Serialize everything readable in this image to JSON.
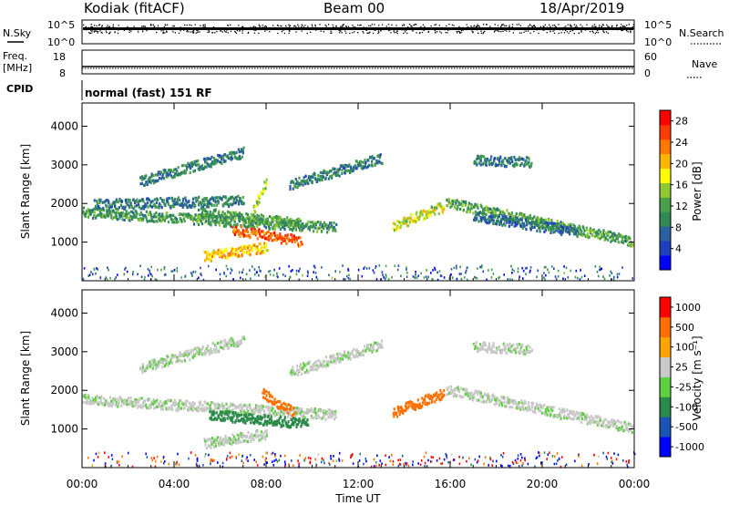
{
  "header": {
    "station": "Kodiak (fitACF)",
    "beam": "Beam 00",
    "date": "18/Apr/2019"
  },
  "strips": {
    "nsky_label": "N.Sky",
    "nsearch_label": "N.Search",
    "nsky_ticks": [
      "10^5",
      "10^0"
    ],
    "freq_label": "Freq.",
    "freq_unit": "[MHz]",
    "freq_ticks": [
      "18",
      "8"
    ],
    "nave_label": "Nave",
    "nave_ticks": [
      "60",
      "0"
    ],
    "cpid_label": "CPID",
    "cpid_text": "normal (fast) 151 RF"
  },
  "colors": {
    "power_scale": [
      "#0000ff",
      "#1f3fbf",
      "#2a5fa0",
      "#2f8a55",
      "#4aa04a",
      "#8fc832",
      "#ffff00",
      "#ffb400",
      "#ff7800",
      "#ff3c00",
      "#ff0000"
    ],
    "velocity_scale": [
      "#0000ff",
      "#1a54b5",
      "#2a8a4a",
      "#5fd040",
      "#c8c8c8",
      "#ffa500",
      "#ff7000",
      "#ff0000"
    ]
  },
  "chart_data": [
    {
      "type": "heatmap",
      "panel": "power",
      "ylabel": "Slant Range [km]",
      "y_ticks": [
        1000,
        2000,
        3000,
        4000
      ],
      "ylim": [
        0,
        4600
      ],
      "x_ticks": [
        "00:00",
        "04:00",
        "08:00",
        "12:00",
        "16:00",
        "20:00",
        "00:00"
      ],
      "xlim_hours": [
        0,
        24
      ],
      "colorbar": {
        "label": "Power [dB]",
        "ticks": [
          4,
          8,
          12,
          16,
          20,
          24,
          28
        ],
        "range": [
          0,
          30
        ]
      },
      "bands": [
        {
          "t_start": 0.0,
          "t_end": 11.0,
          "range_start_km": 1800,
          "range_end_km": 1400,
          "value": 11
        },
        {
          "t_start": 0.5,
          "t_end": 7.0,
          "range_start_km": 2000,
          "range_end_km": 2100,
          "value": 9
        },
        {
          "t_start": 2.5,
          "t_end": 7.0,
          "range_start_km": 2600,
          "range_end_km": 3350,
          "value": 9
        },
        {
          "t_start": 5.0,
          "t_end": 9.5,
          "range_start_km": 1800,
          "range_end_km": 1500,
          "value": 12
        },
        {
          "t_start": 6.5,
          "t_end": 9.5,
          "range_start_km": 1350,
          "range_end_km": 1050,
          "value": 25
        },
        {
          "t_start": 5.3,
          "t_end": 8.0,
          "range_start_km": 650,
          "range_end_km": 900,
          "value": 20
        },
        {
          "t_start": 7.3,
          "t_end": 8.0,
          "range_start_km": 1700,
          "range_end_km": 2600,
          "value": 15
        },
        {
          "t_start": 9.0,
          "t_end": 13.0,
          "range_start_km": 2500,
          "range_end_km": 3200,
          "value": 9
        },
        {
          "t_start": 13.5,
          "t_end": 15.7,
          "range_start_km": 1450,
          "range_end_km": 1950,
          "value": 17
        },
        {
          "t_start": 15.8,
          "t_end": 23.9,
          "range_start_km": 2050,
          "range_end_km": 1050,
          "value": 12
        },
        {
          "t_start": 17.0,
          "t_end": 21.5,
          "range_start_km": 1700,
          "range_end_km": 1300,
          "value": 8
        },
        {
          "t_start": 17.0,
          "t_end": 19.5,
          "range_start_km": 3150,
          "range_end_km": 3100,
          "value": 9
        }
      ]
    },
    {
      "type": "heatmap",
      "panel": "velocity",
      "ylabel": "Slant Range [km]",
      "y_ticks": [
        1000,
        2000,
        3000,
        4000
      ],
      "ylim": [
        0,
        4600
      ],
      "x_ticks": [
        "00:00",
        "04:00",
        "08:00",
        "12:00",
        "16:00",
        "20:00",
        "00:00"
      ],
      "xlim_hours": [
        0,
        24
      ],
      "xlabel": "Time UT",
      "colorbar": {
        "label": "Velocity [m s⁻¹]",
        "ticks": [
          1000,
          500,
          100,
          25,
          -25,
          -100,
          -500,
          -1000
        ]
      },
      "bands": [
        {
          "t_start": 0.0,
          "t_end": 11.0,
          "range_start_km": 1800,
          "range_end_km": 1400,
          "value": 0
        },
        {
          "t_start": 2.5,
          "t_end": 7.0,
          "range_start_km": 2600,
          "range_end_km": 3350,
          "value": 0
        },
        {
          "t_start": 5.5,
          "t_end": 9.8,
          "range_start_km": 1400,
          "range_end_km": 1150,
          "value": 60
        },
        {
          "t_start": 5.3,
          "t_end": 8.0,
          "range_start_km": 650,
          "range_end_km": 900,
          "value": 0
        },
        {
          "t_start": 7.8,
          "t_end": 9.2,
          "range_start_km": 1950,
          "range_end_km": 1450,
          "value": -200
        },
        {
          "t_start": 9.0,
          "t_end": 13.0,
          "range_start_km": 2500,
          "range_end_km": 3200,
          "value": 0
        },
        {
          "t_start": 13.5,
          "t_end": 15.7,
          "range_start_km": 1450,
          "range_end_km": 1950,
          "value": -150
        },
        {
          "t_start": 15.8,
          "t_end": 23.9,
          "range_start_km": 2050,
          "range_end_km": 1050,
          "value": 0
        },
        {
          "t_start": 17.0,
          "t_end": 19.5,
          "range_start_km": 3150,
          "range_end_km": 3100,
          "value": 0
        }
      ]
    }
  ]
}
